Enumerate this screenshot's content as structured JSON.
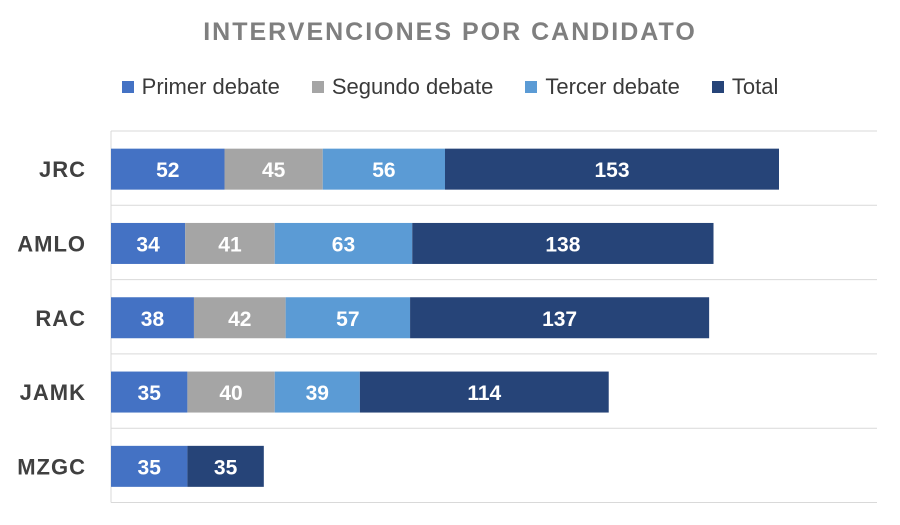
{
  "chart_data": {
    "type": "bar",
    "orientation": "horizontal",
    "stacked": true,
    "title": "INTERVENCIONES POR CANDIDATO",
    "categories": [
      "JRC",
      "AMLO",
      "RAC",
      "JAMK",
      "MZGC"
    ],
    "series": [
      {
        "name": "Primer debate",
        "color": "#4472c4",
        "values": [
          52,
          34,
          38,
          35,
          35
        ]
      },
      {
        "name": "Segundo debate",
        "color": "#a5a5a5",
        "values": [
          45,
          41,
          42,
          40,
          null
        ]
      },
      {
        "name": "Tercer debate",
        "color": "#5b9bd5",
        "values": [
          56,
          63,
          57,
          39,
          null
        ]
      },
      {
        "name": "Total",
        "color": "#264478",
        "values": [
          153,
          138,
          137,
          114,
          35
        ]
      }
    ],
    "xlim": [
      0,
      350
    ],
    "grid": true,
    "legend_position": "top",
    "data_labels": true
  }
}
